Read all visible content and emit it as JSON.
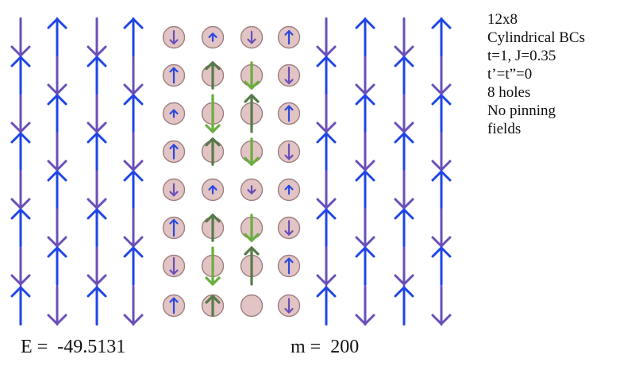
{
  "legend": {
    "lines": [
      "12x8",
      "Cylindrical BCs",
      "t=1, J=0.35",
      "t’=t”=0",
      "8 holes",
      "No pinning",
      "fields"
    ]
  },
  "energy": {
    "label": "E =",
    "value": "-49.5131"
  },
  "bond_dimension": {
    "label": "m =",
    "value": "200"
  },
  "colors": {
    "up_spin": "#1f45e6",
    "down_spin": "#6a4fb8",
    "hole_fill": "#e2c4c4",
    "hole_stroke": "#9d8080",
    "up_on_hole": "#587a4a",
    "down_on_hole": "#6aae3e",
    "small_up": "#2a49e0",
    "small_down": "#6a4fb8"
  },
  "lattice": {
    "rows": 8,
    "columns": 12,
    "left_stripe_columns": [
      [
        "down",
        "up",
        "down",
        "up",
        "down",
        "up",
        "down",
        "up"
      ],
      [
        "up",
        "down",
        "up",
        "down",
        "up",
        "down",
        "up",
        "down"
      ],
      [
        "down",
        "up",
        "down",
        "up",
        "down",
        "up",
        "down",
        "up"
      ],
      [
        "up",
        "down",
        "up",
        "down",
        "up",
        "down",
        "up",
        "down"
      ]
    ],
    "hole_columns": [
      [
        "d:0.35",
        "u:0.45",
        "u:0.1",
        "u:0.4",
        "d:0.3",
        "u:0.5",
        "d:0.5",
        "u:0.45"
      ],
      [
        "u:0.12",
        "up:0.6",
        "down:1.0",
        "up:0.6",
        "u:0.12",
        "up:0.6",
        "down:1.0",
        "up:0.35"
      ],
      [
        "d:0.3",
        "down:0.6",
        "up:1.0",
        "down:0.6",
        "d:0.12",
        "down:0.6",
        "up:1.0",
        "0:0"
      ],
      [
        "u:0.35",
        "d:0.5",
        "u:0.45",
        "d:0.45",
        "u:0.15",
        "d:0.4",
        "u:0.45",
        "d:0.4"
      ]
    ],
    "right_stripe_columns": [
      [
        "down",
        "up",
        "down",
        "up",
        "down",
        "up",
        "down",
        "up"
      ],
      [
        "up",
        "down",
        "up",
        "down",
        "up",
        "down",
        "up",
        "down"
      ],
      [
        "down",
        "up",
        "down",
        "up",
        "down",
        "up",
        "down",
        "up"
      ],
      [
        "up",
        "down",
        "up",
        "down",
        "up",
        "down",
        "up",
        "down"
      ]
    ]
  }
}
